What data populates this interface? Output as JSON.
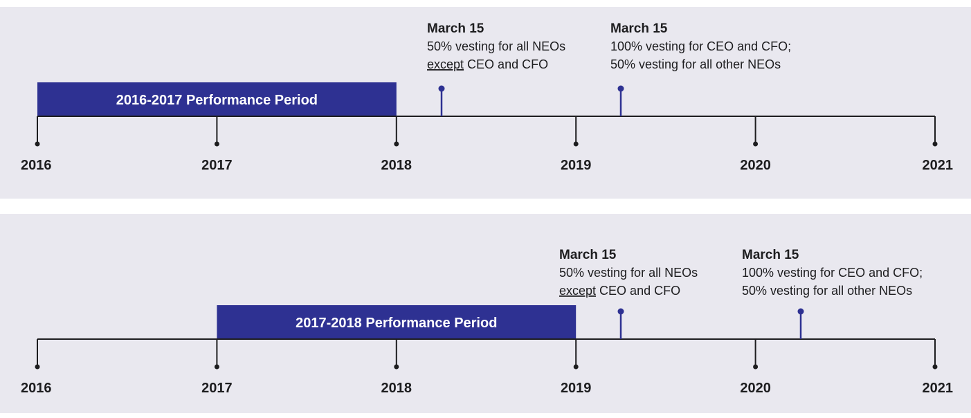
{
  "panels": [
    {
      "years": [
        "2016",
        "2017",
        "2018",
        "2019",
        "2020",
        "2021"
      ],
      "period": "2016-2017 Performance Period",
      "events": [
        {
          "title": "March 15",
          "lines": [
            [
              {
                "text": "50% vesting for all NEOs"
              }
            ],
            [
              {
                "text": "except",
                "underline": true
              },
              {
                "text": " CEO and CFO"
              }
            ]
          ]
        },
        {
          "title": "March 15",
          "lines": [
            [
              {
                "text": "100% vesting for CEO and CFO;"
              }
            ],
            [
              {
                "text": "50% vesting for all other NEOs"
              }
            ]
          ]
        }
      ]
    },
    {
      "years": [
        "2016",
        "2017",
        "2018",
        "2019",
        "2020",
        "2021"
      ],
      "period": "2017-2018 Performance Period",
      "events": [
        {
          "title": "March 15",
          "lines": [
            [
              {
                "text": "50% vesting for all NEOs"
              }
            ],
            [
              {
                "text": "except",
                "underline": true
              },
              {
                "text": " CEO and CFO"
              }
            ]
          ]
        },
        {
          "title": "March 15",
          "lines": [
            [
              {
                "text": "100% vesting for CEO and CFO;"
              }
            ],
            [
              {
                "text": "50% vesting for all other NEOs"
              }
            ]
          ]
        }
      ]
    }
  ]
}
